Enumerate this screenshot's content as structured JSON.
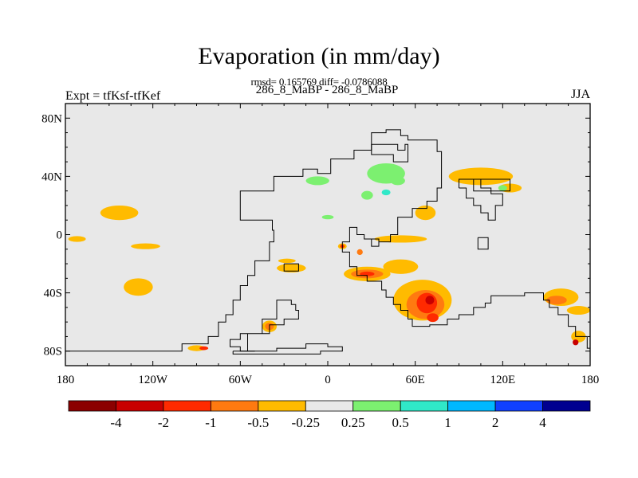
{
  "chart_data": {
    "type": "heatmap",
    "title": "Evaporation (in mm/day)",
    "stats_text": "rmsd= 0.165769 diff= -0.0786088",
    "subtitle": "286_8_MaBP - 286_8_MaBP",
    "left_label": "Expt = tfKsf-tfKef",
    "right_label": "JJA",
    "x_ticks": [
      {
        "v": -180,
        "label": "180"
      },
      {
        "v": -120,
        "label": "120W"
      },
      {
        "v": -60,
        "label": "60W"
      },
      {
        "v": 0,
        "label": "0"
      },
      {
        "v": 60,
        "label": "60E"
      },
      {
        "v": 120,
        "label": "120E"
      },
      {
        "v": 180,
        "label": "180"
      }
    ],
    "y_ticks": [
      {
        "v": 80,
        "label": "80N"
      },
      {
        "v": 40,
        "label": "40N"
      },
      {
        "v": 0,
        "label": "0"
      },
      {
        "v": -40,
        "label": "40S"
      },
      {
        "v": -80,
        "label": "80S"
      }
    ],
    "xlim": [
      -180,
      180
    ],
    "ylim": [
      -90,
      90
    ],
    "background_color": "#e8e8e8",
    "colorbar": {
      "colors": [
        "#8b0000",
        "#c80000",
        "#ff2a00",
        "#ff7a10",
        "#ffbb00",
        "#e8e8e8",
        "#7cf070",
        "#30e8c8",
        "#00b8ff",
        "#1040ff",
        "#000090"
      ],
      "labels": [
        "-4",
        "-2",
        "-1",
        "-0.5",
        "-0.25",
        "0.25",
        "0.5",
        "1",
        "2",
        "4"
      ]
    },
    "anomalies": [
      {
        "lon": -143,
        "lat": 15,
        "rlon": 13,
        "rlat": 5,
        "level": "-0.25"
      },
      {
        "lon": -172,
        "lat": -3,
        "rlon": 6,
        "rlat": 2,
        "level": "-0.25"
      },
      {
        "lon": -125,
        "lat": -8,
        "rlon": 10,
        "rlat": 2,
        "level": "-0.25"
      },
      {
        "lon": -130,
        "lat": -36,
        "rlon": 10,
        "rlat": 6,
        "level": "-0.25"
      },
      {
        "lon": -90,
        "lat": -78,
        "rlon": 6,
        "rlat": 2,
        "level": "-0.25"
      },
      {
        "lon": -85,
        "lat": -78,
        "rlon": 3,
        "rlat": 1.3,
        "level": "-1"
      },
      {
        "lon": -40,
        "lat": -63,
        "rlon": 5,
        "rlat": 4,
        "level": "-0.25"
      },
      {
        "lon": -40,
        "lat": -63,
        "rlon": 3,
        "rlat": 2.5,
        "level": "-0.5"
      },
      {
        "lon": -25,
        "lat": -23,
        "rlon": 10,
        "rlat": 3,
        "level": "-0.25"
      },
      {
        "lon": -28,
        "lat": -18,
        "rlon": 6,
        "rlat": 1.5,
        "level": "-0.25"
      },
      {
        "lon": 10,
        "lat": -8,
        "rlon": 3,
        "rlat": 2,
        "level": "-0.25"
      },
      {
        "lon": 10,
        "lat": -8,
        "rlon": 1.5,
        "rlat": 1.2,
        "level": "-1"
      },
      {
        "lon": 22,
        "lat": -12,
        "rlon": 2,
        "rlat": 2,
        "level": "-0.5"
      },
      {
        "lon": 27,
        "lat": -27,
        "rlon": 16,
        "rlat": 5,
        "level": "-0.25"
      },
      {
        "lon": 27,
        "lat": -27,
        "rlon": 11,
        "rlat": 3,
        "level": "-0.5"
      },
      {
        "lon": 27,
        "lat": -27,
        "rlon": 5,
        "rlat": 1.6,
        "level": "-1"
      },
      {
        "lon": 50,
        "lat": -3,
        "rlon": 18,
        "rlat": 2.5,
        "level": "-0.25"
      },
      {
        "lon": 50,
        "lat": -22,
        "rlon": 12,
        "rlat": 5,
        "level": "-0.25"
      },
      {
        "lon": 65,
        "lat": -45,
        "rlon": 20,
        "rlat": 14,
        "level": "-0.25"
      },
      {
        "lon": 67,
        "lat": -48,
        "rlon": 13,
        "rlat": 10,
        "level": "-0.5"
      },
      {
        "lon": 68,
        "lat": -47,
        "rlon": 7,
        "rlat": 7,
        "level": "-1"
      },
      {
        "lon": 70,
        "lat": -45,
        "rlon": 3,
        "rlat": 3,
        "level": "-2"
      },
      {
        "lon": 72,
        "lat": -57,
        "rlon": 4,
        "rlat": 3,
        "level": "-1"
      },
      {
        "lon": 67,
        "lat": 15,
        "rlon": 7,
        "rlat": 5,
        "level": "-0.25"
      },
      {
        "lon": 105,
        "lat": 40,
        "rlon": 22,
        "rlat": 6,
        "level": "-0.25"
      },
      {
        "lon": 125,
        "lat": 32,
        "rlon": 8,
        "rlat": 3,
        "level": "-0.25"
      },
      {
        "lon": 40,
        "lat": 42,
        "rlon": 13,
        "rlat": 7,
        "level": "0.25"
      },
      {
        "lon": 48,
        "lat": 37,
        "rlon": 5,
        "rlat": 3,
        "level": "0.25"
      },
      {
        "lon": 40,
        "lat": 29,
        "rlon": 3,
        "rlat": 2,
        "level": "0.5"
      },
      {
        "lon": -7,
        "lat": 37,
        "rlon": 8,
        "rlat": 3,
        "level": "0.25"
      },
      {
        "lon": 27,
        "lat": 27,
        "rlon": 4,
        "rlat": 3,
        "level": "0.25"
      },
      {
        "lon": 0,
        "lat": 12,
        "rlon": 4,
        "rlat": 1.5,
        "level": "0.25"
      },
      {
        "lon": 120,
        "lat": 32,
        "rlon": 3,
        "rlat": 2,
        "level": "0.25"
      },
      {
        "lon": 160,
        "lat": -43,
        "rlon": 12,
        "rlat": 6,
        "level": "-0.25"
      },
      {
        "lon": 157,
        "lat": -45,
        "rlon": 7,
        "rlat": 3,
        "level": "-0.5"
      },
      {
        "lon": 172,
        "lat": -52,
        "rlon": 8,
        "rlat": 3,
        "level": "-0.25"
      },
      {
        "lon": 172,
        "lat": -70,
        "rlon": 5,
        "rlat": 4,
        "level": "-0.25"
      },
      {
        "lon": 170,
        "lat": -74,
        "rlon": 2,
        "rlat": 2,
        "level": "-2"
      }
    ],
    "coastlines": [
      [
        [
          -180,
          -80
        ],
        [
          -100,
          -80
        ],
        [
          -100,
          -75
        ],
        [
          -82,
          -75
        ],
        [
          -82,
          -70
        ],
        [
          -75,
          -70
        ],
        [
          -75,
          -60
        ],
        [
          -70,
          -60
        ],
        [
          -70,
          -55
        ],
        [
          -65,
          -55
        ],
        [
          -65,
          -45
        ],
        [
          -60,
          -45
        ],
        [
          -60,
          -35
        ],
        [
          -55,
          -35
        ],
        [
          -55,
          -28
        ],
        [
          -50,
          -28
        ],
        [
          -50,
          -18
        ],
        [
          -40,
          -18
        ],
        [
          -40,
          -5
        ],
        [
          -37,
          -5
        ],
        [
          -37,
          3
        ],
        [
          -38,
          3
        ],
        [
          -38,
          10
        ],
        [
          -60,
          10
        ],
        [
          -60,
          20
        ],
        [
          -60,
          30
        ],
        [
          -37,
          30
        ],
        [
          -37,
          40
        ],
        [
          -17,
          40
        ],
        [
          -17,
          45
        ],
        [
          -7,
          45
        ],
        [
          -7,
          42
        ],
        [
          2,
          42
        ],
        [
          2,
          52
        ],
        [
          18,
          52
        ],
        [
          18,
          58
        ],
        [
          30,
          58
        ],
        [
          30,
          70
        ],
        [
          40,
          70
        ],
        [
          40,
          72
        ],
        [
          50,
          72
        ],
        [
          50,
          68
        ],
        [
          55,
          68
        ],
        [
          55,
          65
        ],
        [
          75,
          65
        ],
        [
          75,
          57
        ],
        [
          78,
          57
        ],
        [
          78,
          32
        ],
        [
          75,
          32
        ],
        [
          75,
          23
        ],
        [
          68,
          23
        ],
        [
          68,
          18
        ],
        [
          58,
          18
        ],
        [
          58,
          12
        ],
        [
          48,
          12
        ],
        [
          48,
          0
        ],
        [
          43,
          0
        ],
        [
          43,
          -5
        ],
        [
          35,
          -5
        ],
        [
          35,
          -3
        ],
        [
          25,
          -3
        ],
        [
          25,
          0
        ],
        [
          20,
          0
        ],
        [
          20,
          5
        ],
        [
          15,
          5
        ],
        [
          15,
          -5
        ],
        [
          10,
          -5
        ],
        [
          10,
          -12
        ],
        [
          15,
          -12
        ],
        [
          15,
          -18
        ],
        [
          15,
          -22
        ],
        [
          20,
          -22
        ],
        [
          20,
          -28
        ],
        [
          27,
          -28
        ],
        [
          27,
          -32
        ],
        [
          37,
          -32
        ],
        [
          37,
          -38
        ],
        [
          40,
          -38
        ],
        [
          40,
          -43
        ],
        [
          45,
          -43
        ],
        [
          45,
          -48
        ],
        [
          50,
          -48
        ],
        [
          50,
          -52
        ],
        [
          55,
          -52
        ],
        [
          55,
          -58
        ],
        [
          58,
          -58
        ],
        [
          58,
          -63
        ],
        [
          70,
          -63
        ],
        [
          70,
          -62
        ],
        [
          82,
          -62
        ],
        [
          82,
          -58
        ],
        [
          90,
          -58
        ],
        [
          90,
          -55
        ],
        [
          100,
          -55
        ],
        [
          100,
          -50
        ],
        [
          108,
          -50
        ],
        [
          108,
          -47
        ],
        [
          112,
          -47
        ],
        [
          112,
          -42
        ],
        [
          135,
          -42
        ],
        [
          135,
          -40
        ],
        [
          148,
          -40
        ],
        [
          148,
          -45
        ],
        [
          152,
          -45
        ],
        [
          152,
          -50
        ],
        [
          158,
          -50
        ],
        [
          158,
          -55
        ],
        [
          165,
          -55
        ],
        [
          165,
          -63
        ],
        [
          170,
          -63
        ],
        [
          170,
          -70
        ],
        [
          178,
          -70
        ],
        [
          178,
          -78
        ],
        [
          180,
          -78
        ]
      ],
      [
        [
          -50,
          -80
        ],
        [
          -60,
          -80
        ],
        [
          -60,
          -77
        ],
        [
          -67,
          -77
        ],
        [
          -67,
          -72
        ],
        [
          -60,
          -72
        ],
        [
          -60,
          -68
        ],
        [
          -45,
          -68
        ],
        [
          -45,
          -58
        ],
        [
          -35,
          -58
        ],
        [
          -35,
          -45
        ],
        [
          -25,
          -45
        ],
        [
          -25,
          -48
        ],
        [
          -22,
          -48
        ],
        [
          -22,
          -52
        ],
        [
          -20,
          -52
        ],
        [
          -20,
          -58
        ],
        [
          -30,
          -58
        ],
        [
          -30,
          -62
        ],
        [
          -40,
          -62
        ],
        [
          -40,
          -68
        ],
        [
          -55,
          -68
        ],
        [
          -55,
          -80
        ],
        [
          -50,
          -80
        ]
      ],
      [
        [
          -65,
          -80
        ],
        [
          -35,
          -80
        ],
        [
          -35,
          -78
        ],
        [
          -15,
          -78
        ],
        [
          -15,
          -75
        ],
        [
          0,
          -75
        ],
        [
          0,
          -77
        ],
        [
          10,
          -77
        ],
        [
          10,
          -80
        ],
        [
          -5,
          -80
        ],
        [
          -5,
          -82
        ],
        [
          -65,
          -82
        ],
        [
          -65,
          -80
        ]
      ],
      [
        [
          30,
          62
        ],
        [
          48,
          62
        ],
        [
          48,
          58
        ],
        [
          53,
          58
        ],
        [
          53,
          62
        ],
        [
          55,
          62
        ],
        [
          55,
          50
        ],
        [
          45,
          50
        ],
        [
          45,
          55
        ],
        [
          30,
          55
        ],
        [
          30,
          62
        ]
      ],
      [
        [
          -30,
          -20
        ],
        [
          -20,
          -20
        ],
        [
          -20,
          -25
        ],
        [
          -30,
          -25
        ],
        [
          -30,
          -20
        ]
      ],
      [
        [
          90,
          32
        ],
        [
          95,
          32
        ],
        [
          95,
          25
        ],
        [
          100,
          25
        ],
        [
          100,
          20
        ],
        [
          105,
          20
        ],
        [
          105,
          15
        ],
        [
          110,
          15
        ],
        [
          110,
          10
        ],
        [
          115,
          10
        ],
        [
          115,
          20
        ],
        [
          120,
          20
        ],
        [
          120,
          28
        ],
        [
          112,
          28
        ],
        [
          112,
          32
        ],
        [
          105,
          32
        ],
        [
          105,
          38
        ],
        [
          90,
          38
        ],
        [
          90,
          32
        ]
      ],
      [
        [
          103,
          -2
        ],
        [
          110,
          -2
        ],
        [
          110,
          -10
        ],
        [
          103,
          -10
        ],
        [
          103,
          -2
        ]
      ],
      [
        [
          30,
          -3
        ],
        [
          35,
          -3
        ],
        [
          35,
          -8
        ],
        [
          30,
          -8
        ],
        [
          30,
          -3
        ]
      ],
      [
        [
          100,
          38
        ],
        [
          125,
          38
        ],
        [
          125,
          30
        ],
        [
          100,
          30
        ],
        [
          100,
          38
        ]
      ]
    ]
  }
}
